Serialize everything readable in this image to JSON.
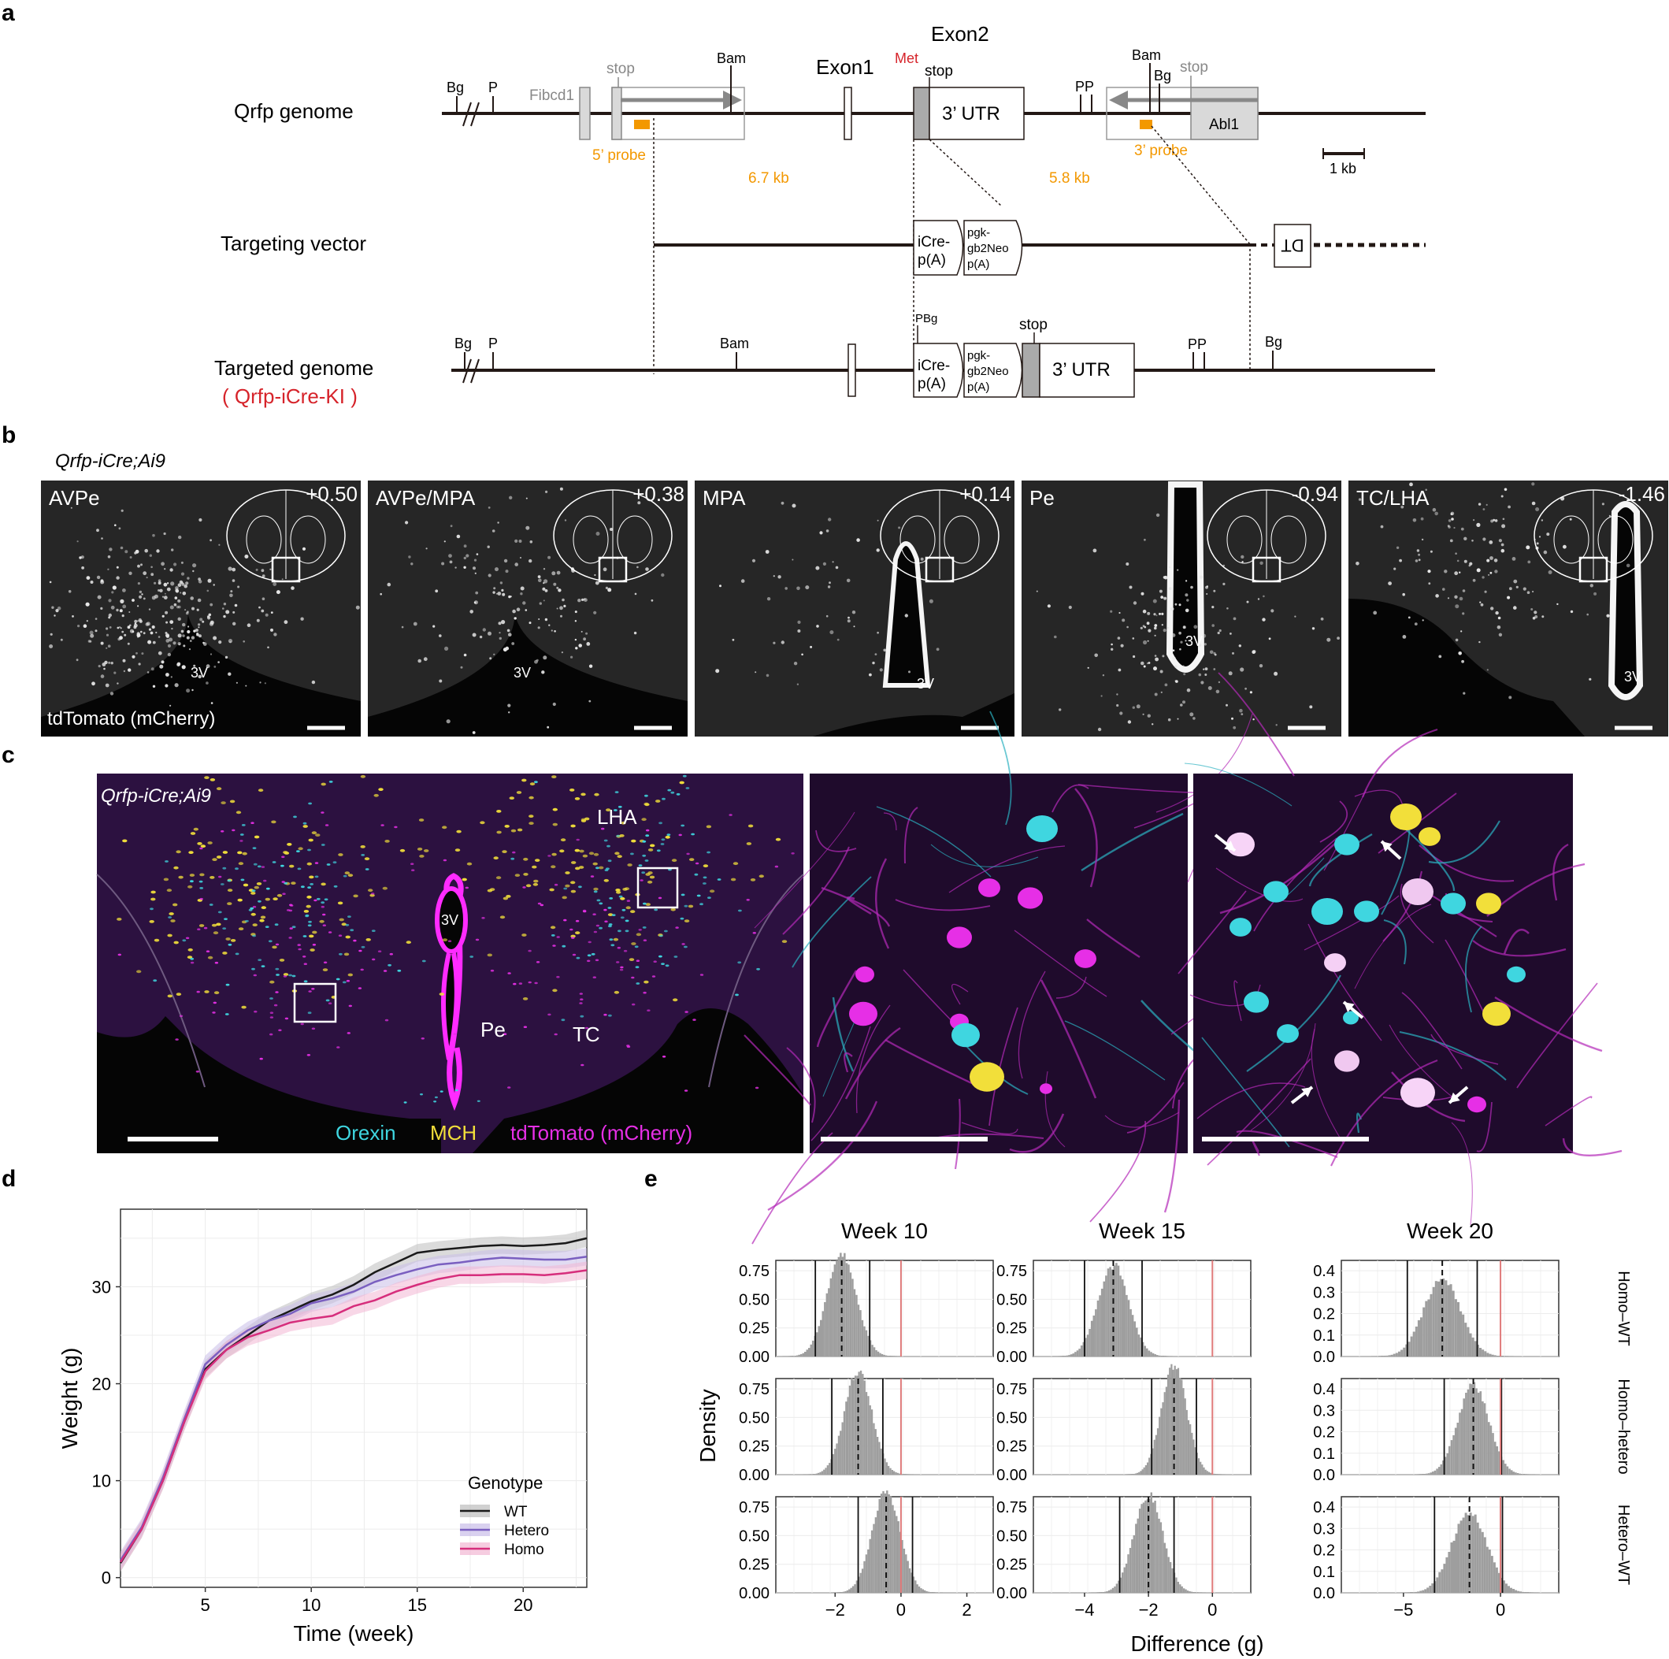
{
  "panels": {
    "a": "a",
    "b": "b",
    "c": "c",
    "d": "d",
    "e": "e"
  },
  "panel_a": {
    "rows": [
      "Qrfp genome",
      "Targeting vector",
      "Targeted genome"
    ],
    "ki_label": "( Qrfp-iCre-KI )",
    "exon1": "Exon1",
    "exon2": "Exon2",
    "met": "Met",
    "stop": "stop",
    "utr": "3’ UTR",
    "fibcd1": "Fibcd1",
    "abl1": "Abl1",
    "probe5": "5’ probe",
    "probe3": "3’ probe",
    "dist1": "6.7 kb",
    "dist2": "5.8 kb",
    "scale": "1 kb",
    "bg": "Bg",
    "p": "P",
    "pp": "PP",
    "bam": "Bam",
    "pbg": "PBg",
    "icre1": "iCre-",
    "icre2": "p(A)",
    "neo1": "pgk-",
    "neo2": "gb2Neo",
    "neo3": "p(A)",
    "dt": "DT"
  },
  "panel_b": {
    "title": "Qrfp-iCre;Ai9",
    "channel": "tdTomato (mCherry)",
    "ventricle": "3V",
    "sections": [
      {
        "name": "AVPe",
        "coord": "+0.50"
      },
      {
        "name": "AVPe/MPA",
        "coord": "+0.38"
      },
      {
        "name": "MPA",
        "coord": "+0.14"
      },
      {
        "name": "Pe",
        "coord": "-0.94"
      },
      {
        "name": "TC/LHA",
        "coord": "-1.46"
      }
    ]
  },
  "panel_c": {
    "title": "Qrfp-iCre;Ai9",
    "lha": "LHA",
    "v3": "3V",
    "pe": "Pe",
    "tc": "TC",
    "legend": [
      {
        "label": "Orexin",
        "color": "#3fd6e0"
      },
      {
        "label": "MCH",
        "color": "#f2df3a"
      },
      {
        "label": "tdTomato (mCherry)",
        "color": "#e62fe6"
      }
    ]
  },
  "chart_data": [
    {
      "type": "line",
      "panel": "d",
      "xlabel": "Time (week)",
      "ylabel": "Weight (g)",
      "xlim": [
        1,
        23
      ],
      "ylim": [
        -1,
        38
      ],
      "xticks": [
        5,
        10,
        15,
        20
      ],
      "yticks": [
        0,
        10,
        20,
        30
      ],
      "grid": true,
      "legend_title": "Genotype",
      "legend_position": "bottom-right",
      "x": [
        1,
        2,
        3,
        4,
        5,
        6,
        7,
        8,
        9,
        10,
        11,
        12,
        13,
        14,
        15,
        16,
        17,
        18,
        19,
        20,
        21,
        22,
        23
      ],
      "series": [
        {
          "name": "WT",
          "color": "#1a1a1a",
          "band": "#bdbdbd",
          "values": [
            1.5,
            5,
            10,
            16,
            21.5,
            23.5,
            25,
            26.5,
            27.5,
            28.5,
            29.2,
            30.2,
            31.5,
            32.5,
            33.5,
            33.8,
            34,
            34.2,
            34.3,
            34.2,
            34.3,
            34.5,
            35
          ]
        },
        {
          "name": "Hetero",
          "color": "#7a5fc0",
          "band": "#c9bde8",
          "values": [
            1.8,
            5.2,
            10.3,
            16.3,
            22,
            24,
            25.5,
            26.5,
            27.2,
            28.3,
            28.8,
            29.5,
            30.5,
            31.2,
            31.8,
            32.3,
            32.5,
            32.8,
            33,
            32.9,
            32.8,
            32.8,
            33.1
          ]
        },
        {
          "name": "Homo",
          "color": "#d62e7c",
          "band": "#f2b6d3",
          "values": [
            1.6,
            5,
            10,
            16,
            21.3,
            23.5,
            24.8,
            25.5,
            26.3,
            26.7,
            27,
            28,
            28.6,
            29.5,
            30.2,
            30.8,
            31.2,
            31.2,
            31.3,
            31.3,
            31.2,
            31.4,
            31.7
          ]
        }
      ]
    },
    {
      "type": "histogram",
      "panel": "e",
      "xlabel": "Difference (g)",
      "ylabel": "Density",
      "columns": [
        "Week 10",
        "Week 15",
        "Week 20"
      ],
      "rows": [
        "Homo–WT",
        "Homo–hetero",
        "Hetero–WT"
      ],
      "grid": true,
      "facets": [
        {
          "col": 0,
          "row": 0,
          "mean": -1.8,
          "ci": [
            -2.6,
            -0.95
          ],
          "sd": 0.45,
          "peak": 0.88,
          "xlim": [
            -3.8,
            2.8
          ],
          "xticks": [
            -2,
            0,
            2
          ],
          "yticks": [
            0,
            0.25,
            0.5,
            0.75
          ]
        },
        {
          "col": 0,
          "row": 1,
          "mean": -1.3,
          "ci": [
            -2.1,
            -0.55
          ],
          "sd": 0.42,
          "peak": 0.9,
          "xlim": [
            -3.8,
            2.8
          ],
          "xticks": [
            -2,
            0,
            2
          ],
          "yticks": [
            0,
            0.25,
            0.5,
            0.75
          ]
        },
        {
          "col": 0,
          "row": 2,
          "mean": -0.45,
          "ci": [
            -1.3,
            0.35
          ],
          "sd": 0.43,
          "peak": 0.88,
          "xlim": [
            -3.8,
            2.8
          ],
          "xticks": [
            -2,
            0,
            2
          ],
          "yticks": [
            0,
            0.25,
            0.5,
            0.75
          ]
        },
        {
          "col": 1,
          "row": 0,
          "mean": -3.1,
          "ci": [
            -4.0,
            -2.2
          ],
          "sd": 0.48,
          "peak": 0.8,
          "xlim": [
            -5.6,
            1.2
          ],
          "xticks": [
            -4,
            -2,
            0
          ],
          "yticks": [
            0,
            0.25,
            0.5,
            0.75
          ]
        },
        {
          "col": 1,
          "row": 1,
          "mean": -1.2,
          "ci": [
            -1.9,
            -0.5
          ],
          "sd": 0.4,
          "peak": 0.95,
          "xlim": [
            -5.6,
            1.2
          ],
          "xticks": [
            -4,
            -2,
            0
          ],
          "yticks": [
            0,
            0.25,
            0.5,
            0.75
          ]
        },
        {
          "col": 1,
          "row": 2,
          "mean": -2.0,
          "ci": [
            -2.9,
            -1.2
          ],
          "sd": 0.45,
          "peak": 0.86,
          "xlim": [
            -5.6,
            1.2
          ],
          "xticks": [
            -4,
            -2,
            0
          ],
          "yticks": [
            0,
            0.25,
            0.5,
            0.75
          ]
        },
        {
          "col": 2,
          "row": 0,
          "mean": -3.0,
          "ci": [
            -4.8,
            -1.2
          ],
          "sd": 0.95,
          "peak": 0.36,
          "xlim": [
            -8.2,
            3.0
          ],
          "xticks": [
            -5,
            0
          ],
          "yticks": [
            0,
            0.1,
            0.2,
            0.3,
            0.4
          ]
        },
        {
          "col": 2,
          "row": 1,
          "mean": -1.4,
          "ci": [
            -2.9,
            0.05
          ],
          "sd": 0.8,
          "peak": 0.42,
          "xlim": [
            -8.2,
            3.0
          ],
          "xticks": [
            -5,
            0
          ],
          "yticks": [
            0,
            0.1,
            0.2,
            0.3,
            0.4
          ]
        },
        {
          "col": 2,
          "row": 2,
          "mean": -1.6,
          "ci": [
            -3.4,
            0.1
          ],
          "sd": 0.92,
          "peak": 0.37,
          "xlim": [
            -8.2,
            3.0
          ],
          "xticks": [
            -5,
            0
          ],
          "yticks": [
            0,
            0.1,
            0.2,
            0.3,
            0.4
          ]
        }
      ]
    }
  ]
}
